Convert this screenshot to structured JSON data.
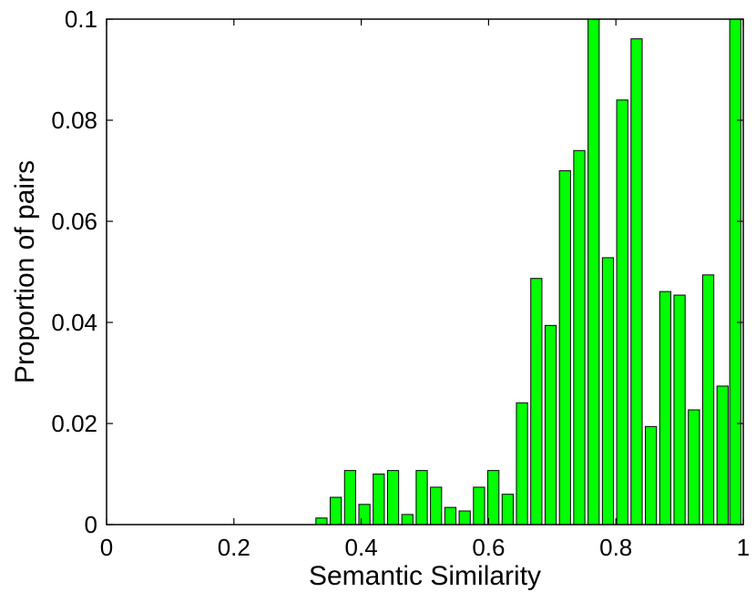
{
  "chart_data": {
    "type": "bar",
    "title": "",
    "xlabel": "Semantic Similarity",
    "ylabel": "Proportion of pairs",
    "xlim": [
      0,
      1
    ],
    "ylim": [
      0,
      0.1
    ],
    "grid": false,
    "bar_color": "#00ff00",
    "edge_color": "#000000",
    "x_ticks": [
      {
        "value": 0,
        "label": "0"
      },
      {
        "value": 0.2,
        "label": "0.2"
      },
      {
        "value": 0.4,
        "label": "0.4"
      },
      {
        "value": 0.6,
        "label": "0.6"
      },
      {
        "value": 0.8,
        "label": "0.8"
      },
      {
        "value": 1,
        "label": "1"
      }
    ],
    "y_ticks": [
      {
        "value": 0,
        "label": "0"
      },
      {
        "value": 0.02,
        "label": "0.02"
      },
      {
        "value": 0.04,
        "label": "0.04"
      },
      {
        "value": 0.06,
        "label": "0.06"
      },
      {
        "value": 0.08,
        "label": "0.08"
      },
      {
        "value": 0.1,
        "label": "0.1"
      }
    ],
    "bar_width": 0.0175,
    "bars": [
      {
        "x": 0.3375,
        "y": 0.0013
      },
      {
        "x": 0.36,
        "y": 0.0054
      },
      {
        "x": 0.3825,
        "y": 0.0107
      },
      {
        "x": 0.405,
        "y": 0.004
      },
      {
        "x": 0.4275,
        "y": 0.01
      },
      {
        "x": 0.45,
        "y": 0.0107
      },
      {
        "x": 0.4725,
        "y": 0.002
      },
      {
        "x": 0.495,
        "y": 0.0107
      },
      {
        "x": 0.5175,
        "y": 0.0074
      },
      {
        "x": 0.54,
        "y": 0.0034
      },
      {
        "x": 0.5625,
        "y": 0.0027
      },
      {
        "x": 0.585,
        "y": 0.0074
      },
      {
        "x": 0.6075,
        "y": 0.0107
      },
      {
        "x": 0.63,
        "y": 0.006
      },
      {
        "x": 0.6525,
        "y": 0.0241
      },
      {
        "x": 0.675,
        "y": 0.0487
      },
      {
        "x": 0.6975,
        "y": 0.0394
      },
      {
        "x": 0.72,
        "y": 0.07
      },
      {
        "x": 0.7425,
        "y": 0.074
      },
      {
        "x": 0.765,
        "y": 0.1
      },
      {
        "x": 0.7875,
        "y": 0.0528
      },
      {
        "x": 0.81,
        "y": 0.084
      },
      {
        "x": 0.8325,
        "y": 0.0961
      },
      {
        "x": 0.855,
        "y": 0.0194
      },
      {
        "x": 0.8775,
        "y": 0.0461
      },
      {
        "x": 0.9,
        "y": 0.0454
      },
      {
        "x": 0.9225,
        "y": 0.0227
      },
      {
        "x": 0.945,
        "y": 0.0494
      },
      {
        "x": 0.9675,
        "y": 0.0274
      },
      {
        "x": 0.9875,
        "y": 0.1
      }
    ]
  }
}
